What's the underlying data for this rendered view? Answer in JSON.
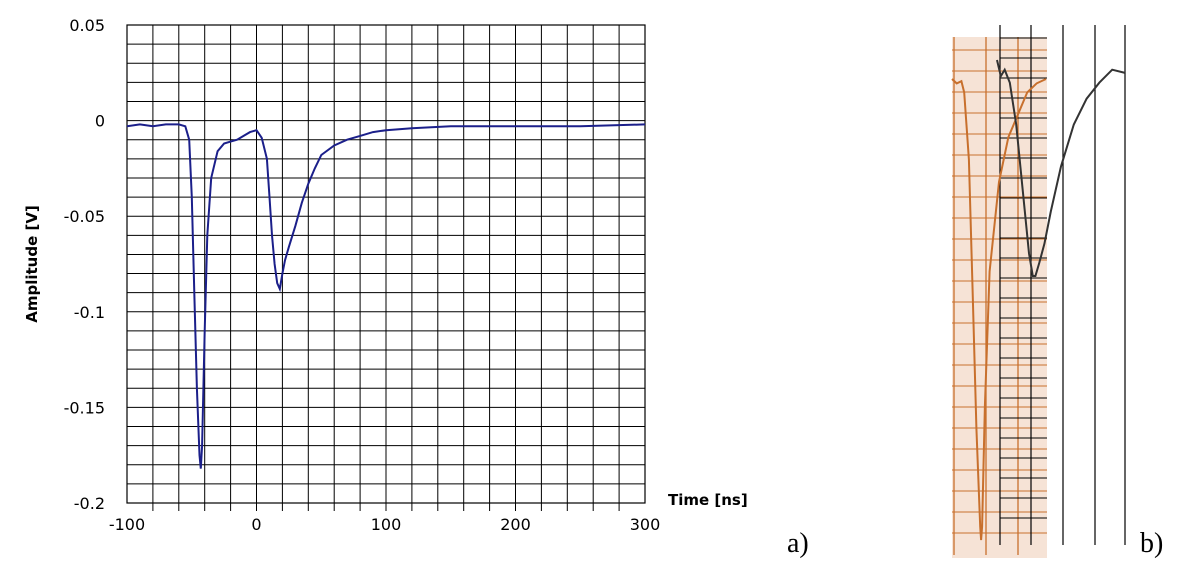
{
  "chart_data": [
    {
      "type": "line",
      "panel_label": "a)",
      "xlabel": "Time [ns]",
      "ylabel": "Amplitude [V]",
      "xlim": [
        -100,
        300
      ],
      "ylim": [
        -0.2,
        0.05
      ],
      "x_ticks": [
        -100,
        0,
        100,
        200,
        300
      ],
      "x_tick_labels": [
        "-100",
        "0",
        "100",
        "200",
        "300"
      ],
      "y_ticks": [
        0.05,
        0,
        -0.05,
        -0.1,
        -0.15,
        -0.2
      ],
      "y_tick_labels": [
        "0.05",
        "0",
        "-0.05",
        "-0.1",
        "-0.15",
        "-0.2"
      ],
      "grid": true,
      "color": "#1b1f8a",
      "series": [
        {
          "x": [
            -100,
            -90,
            -80,
            -70,
            -60,
            -55,
            -52,
            -50,
            -48,
            -46,
            -44,
            -43,
            -42,
            -40,
            -38,
            -35,
            -30,
            -25,
            -20,
            -15,
            -10,
            -5,
            0,
            4,
            8,
            10,
            12,
            14,
            16,
            18,
            20,
            22,
            25,
            30,
            35,
            40,
            45,
            50,
            60,
            70,
            80,
            90,
            100,
            120,
            150,
            200,
            250,
            300
          ],
          "y": [
            -0.003,
            -0.002,
            -0.003,
            -0.002,
            -0.002,
            -0.003,
            -0.01,
            -0.04,
            -0.09,
            -0.14,
            -0.175,
            -0.182,
            -0.17,
            -0.11,
            -0.06,
            -0.03,
            -0.016,
            -0.012,
            -0.011,
            -0.01,
            -0.008,
            -0.006,
            -0.005,
            -0.009,
            -0.02,
            -0.04,
            -0.06,
            -0.075,
            -0.085,
            -0.088,
            -0.08,
            -0.073,
            -0.066,
            -0.055,
            -0.043,
            -0.033,
            -0.025,
            -0.018,
            -0.013,
            -0.01,
            -0.008,
            -0.006,
            -0.005,
            -0.004,
            -0.003,
            -0.003,
            -0.003,
            -0.002
          ]
        }
      ]
    },
    {
      "type": "line",
      "panel_label": "b)",
      "grid": true,
      "highlight_color": "#f6e3d6",
      "series": [
        {
          "color": "#c8702d",
          "x": [
            0,
            0.05,
            0.1,
            0.13,
            0.18,
            0.22,
            0.26,
            0.3,
            0.31,
            0.32,
            0.35,
            0.4,
            0.5,
            0.6,
            0.7,
            0.8,
            0.9,
            1.0
          ],
          "y": [
            0.03,
            0.02,
            0.025,
            0.0,
            -0.15,
            -0.45,
            -0.75,
            -0.97,
            -1.0,
            -0.97,
            -0.7,
            -0.4,
            -0.2,
            -0.1,
            -0.05,
            0.0,
            0.02,
            0.03
          ]
        },
        {
          "color": "#333333",
          "x": [
            0,
            0.03,
            0.06,
            0.1,
            0.15,
            0.2,
            0.25,
            0.28,
            0.3,
            0.33,
            0.37,
            0.42,
            0.5,
            0.6,
            0.7,
            0.8,
            0.9,
            1.0
          ],
          "y": [
            0.05,
            0.0,
            0.02,
            -0.02,
            -0.15,
            -0.35,
            -0.55,
            -0.62,
            -0.62,
            -0.58,
            -0.52,
            -0.42,
            -0.28,
            -0.15,
            -0.07,
            -0.02,
            0.02,
            0.01
          ]
        }
      ]
    }
  ]
}
